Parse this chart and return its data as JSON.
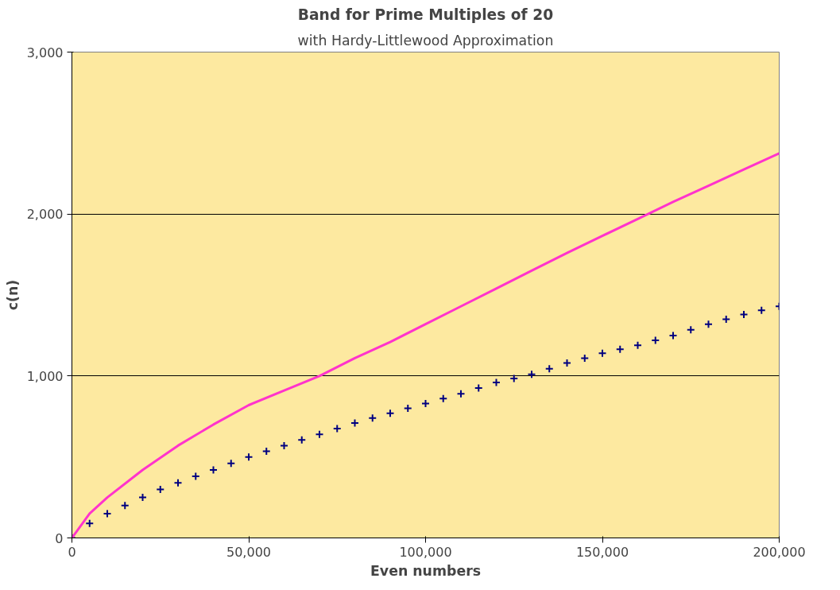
{
  "chart_data": {
    "type": "scatter",
    "title": "Band for Prime Multiples of 20",
    "subtitle": "with Hardy-Littlewood Approximation",
    "xlabel": "Even numbers",
    "ylabel": "c(n)",
    "xlim": [
      0,
      200000
    ],
    "xticks": [
      {
        "value": 0,
        "label": "0"
      },
      {
        "value": 50000,
        "label": "50,000"
      },
      {
        "value": 100000,
        "label": "100,000"
      },
      {
        "value": 150000,
        "label": "150,000"
      },
      {
        "value": 200000,
        "label": "200,000"
      }
    ],
    "ylim": [
      0,
      3000
    ],
    "yticks": [
      {
        "value": 0,
        "label": "0"
      },
      {
        "value": 1000,
        "label": "1,000"
      },
      {
        "value": 2000,
        "label": "2,000"
      },
      {
        "value": 3000,
        "label": "3,000"
      }
    ],
    "grid": "y",
    "series": [
      {
        "marker": "cross",
        "color": "#000080",
        "x": [
          0,
          5000,
          10000,
          15000,
          20000,
          25000,
          30000,
          35000,
          40000,
          45000,
          50000,
          55000,
          60000,
          65000,
          70000,
          75000,
          80000,
          85000,
          90000,
          95000,
          100000,
          105000,
          110000,
          115000,
          120000,
          125000,
          130000,
          135000,
          140000,
          145000,
          150000,
          155000,
          160000,
          165000,
          170000,
          175000,
          180000,
          185000,
          190000,
          195000,
          200000
        ],
        "values": [
          0,
          90,
          150,
          200,
          250,
          300,
          340,
          380,
          420,
          460,
          500,
          535,
          570,
          605,
          640,
          675,
          710,
          740,
          770,
          800,
          830,
          860,
          890,
          925,
          960,
          985,
          1010,
          1045,
          1080,
          1110,
          1140,
          1165,
          1190,
          1220,
          1250,
          1285,
          1320,
          1350,
          1380,
          1405,
          1430
        ]
      },
      {
        "type": "line",
        "color": "#ff33cc",
        "x": [
          0,
          5000,
          10000,
          20000,
          30000,
          40000,
          50000,
          60000,
          70000,
          80000,
          90000,
          100000,
          110000,
          120000,
          130000,
          140000,
          150000,
          160000,
          170000,
          180000,
          190000,
          200000
        ],
        "values": [
          0,
          150,
          250,
          420,
          570,
          700,
          820,
          910,
          1000,
          1110,
          1210,
          1320,
          1430,
          1540,
          1650,
          1760,
          1865,
          1970,
          2075,
          2175,
          2275,
          2375
        ]
      }
    ]
  }
}
